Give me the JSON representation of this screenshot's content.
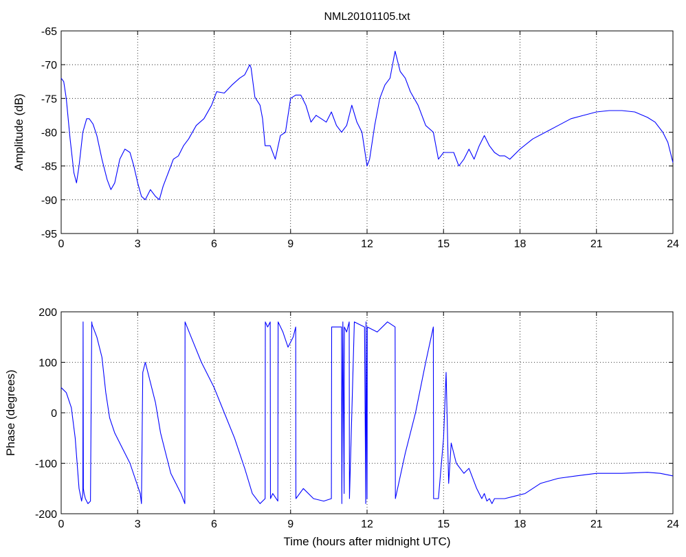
{
  "colors": {
    "line": "#0000ff",
    "axes": "#000000",
    "background": "#ffffff"
  },
  "chart_data": [
    {
      "type": "line",
      "title": "NML20101105.txt",
      "xlabel": "",
      "ylabel": "Amplitude (dB)",
      "xlim": [
        0,
        24
      ],
      "ylim": [
        -95,
        -65
      ],
      "xticks": [
        0,
        3,
        6,
        9,
        12,
        15,
        18,
        21,
        24
      ],
      "yticks": [
        -95,
        -90,
        -85,
        -80,
        -75,
        -70,
        -65
      ],
      "grid": true,
      "series": [
        {
          "x": [
            0,
            0.1,
            0.2,
            0.35,
            0.5,
            0.6,
            0.7,
            0.85,
            1.0,
            1.1,
            1.25,
            1.4,
            1.6,
            1.8,
            1.95,
            2.1,
            2.3,
            2.5,
            2.7,
            2.85,
            3.0,
            3.15,
            3.3,
            3.5,
            3.7,
            3.85,
            4.0,
            4.2,
            4.4,
            4.6,
            4.8,
            5.0,
            5.3,
            5.6,
            5.9,
            6.1,
            6.4,
            6.7,
            7.0,
            7.2,
            7.4,
            7.45,
            7.6,
            7.8,
            7.9,
            8.0,
            8.2,
            8.4,
            8.6,
            8.8,
            9.0,
            9.2,
            9.4,
            9.6,
            9.8,
            10.0,
            10.2,
            10.4,
            10.6,
            10.8,
            11.0,
            11.2,
            11.4,
            11.6,
            11.8,
            12.0,
            12.1,
            12.3,
            12.5,
            12.7,
            12.9,
            13.1,
            13.3,
            13.5,
            13.7,
            14.0,
            14.3,
            14.6,
            14.8,
            15.0,
            15.2,
            15.4,
            15.6,
            15.8,
            16.0,
            16.2,
            16.4,
            16.6,
            16.8,
            17.0,
            17.2,
            17.4,
            17.6,
            18.0,
            18.5,
            19.0,
            19.5,
            20.0,
            20.5,
            21.0,
            21.5,
            22.0,
            22.5,
            23.0,
            23.3,
            23.6,
            23.8,
            24.0
          ],
          "y": [
            -72,
            -72.5,
            -75,
            -81,
            -86,
            -87.5,
            -85,
            -80,
            -78,
            -78,
            -78.8,
            -80.5,
            -84,
            -87,
            -88.5,
            -87.5,
            -84,
            -82.5,
            -83,
            -85,
            -87.5,
            -89.5,
            -90,
            -88.5,
            -89.5,
            -90,
            -88,
            -86,
            -84,
            -83.5,
            -82,
            -81,
            -79,
            -78,
            -76,
            -74,
            -74.2,
            -73,
            -72,
            -71.5,
            -70,
            -70.5,
            -74.8,
            -76,
            -78,
            -82,
            -82,
            -84,
            -80.5,
            -80,
            -75,
            -74.5,
            -74.5,
            -76,
            -78.5,
            -77.5,
            -78,
            -78.5,
            -77,
            -79,
            -80,
            -79,
            -76,
            -78.5,
            -80,
            -85,
            -84,
            -79,
            -75,
            -73,
            -72,
            -68,
            -71,
            -72,
            -74,
            -76,
            -79,
            -80,
            -84,
            -83,
            -83,
            -83,
            -85,
            -84,
            -82.5,
            -84,
            -82,
            -80.5,
            -82,
            -83,
            -83.5,
            -83.5,
            -84,
            -82.5,
            -81,
            -80,
            -79,
            -78,
            -77.5,
            -77,
            -76.8,
            -76.8,
            -77,
            -77.8,
            -78.5,
            -80,
            -81.5,
            -84.5
          ]
        }
      ]
    },
    {
      "type": "line",
      "title": "",
      "xlabel": "Time (hours after midnight UTC)",
      "ylabel": "Phase (degrees)",
      "xlim": [
        0,
        24
      ],
      "ylim": [
        -200,
        200
      ],
      "xticks": [
        0,
        3,
        6,
        9,
        12,
        15,
        18,
        21,
        24
      ],
      "yticks": [
        -200,
        -100,
        0,
        100,
        200
      ],
      "grid": true,
      "series": [
        {
          "x": [
            0,
            0.2,
            0.4,
            0.55,
            0.7,
            0.8,
            0.85,
            0.86,
            0.87,
            0.9,
            0.95,
            1.05,
            1.15,
            1.2,
            1.21,
            1.4,
            1.6,
            1.75,
            1.9,
            2.1,
            2.4,
            2.7,
            2.9,
            3.1,
            3.15,
            3.2,
            3.3,
            3.5,
            3.7,
            3.9,
            4.1,
            4.3,
            4.5,
            4.7,
            4.85,
            4.86,
            5.1,
            5.5,
            6.0,
            6.4,
            6.8,
            7.2,
            7.5,
            7.8,
            8.0,
            8.01,
            8.1,
            8.2,
            8.21,
            8.3,
            8.5,
            8.51,
            8.7,
            8.9,
            9.1,
            9.2,
            9.21,
            9.5,
            9.9,
            10.3,
            10.6,
            10.61,
            11.0,
            11.01,
            11.05,
            11.1,
            11.11,
            11.2,
            11.3,
            11.31,
            11.5,
            11.9,
            11.95,
            11.96,
            12.0,
            12.01,
            12.4,
            12.8,
            13.1,
            13.11,
            13.5,
            13.9,
            14.3,
            14.6,
            14.61,
            14.8,
            15.0,
            15.1,
            15.2,
            15.3,
            15.5,
            15.8,
            16.0,
            16.3,
            16.5,
            16.6,
            16.7,
            16.8,
            16.9,
            17.0,
            17.2,
            17.4,
            17.8,
            18.2,
            18.8,
            19.5,
            20.2,
            21.0,
            22.0,
            23.0,
            23.5,
            24.0
          ],
          "y": [
            50,
            40,
            10,
            -50,
            -150,
            -175,
            -160,
            180,
            -150,
            -160,
            -170,
            -180,
            -175,
            180,
            175,
            150,
            110,
            40,
            -10,
            -40,
            -70,
            -100,
            -130,
            -160,
            -180,
            80,
            100,
            60,
            20,
            -40,
            -80,
            -120,
            -140,
            -160,
            -180,
            180,
            150,
            100,
            50,
            0,
            -50,
            -110,
            -160,
            -180,
            -170,
            180,
            170,
            180,
            -170,
            -160,
            -175,
            180,
            160,
            130,
            150,
            170,
            -170,
            -150,
            -170,
            -175,
            -170,
            170,
            170,
            -180,
            180,
            -160,
            170,
            160,
            180,
            -170,
            180,
            170,
            -180,
            180,
            -170,
            170,
            160,
            180,
            170,
            -170,
            -80,
            0,
            100,
            170,
            -170,
            -170,
            -50,
            80,
            -140,
            -60,
            -100,
            -120,
            -110,
            -150,
            -170,
            -160,
            -175,
            -170,
            -180,
            -170,
            -170,
            -170,
            -165,
            -160,
            -140,
            -130,
            -125,
            -120,
            -120,
            -118,
            -120,
            -125
          ]
        }
      ]
    }
  ]
}
